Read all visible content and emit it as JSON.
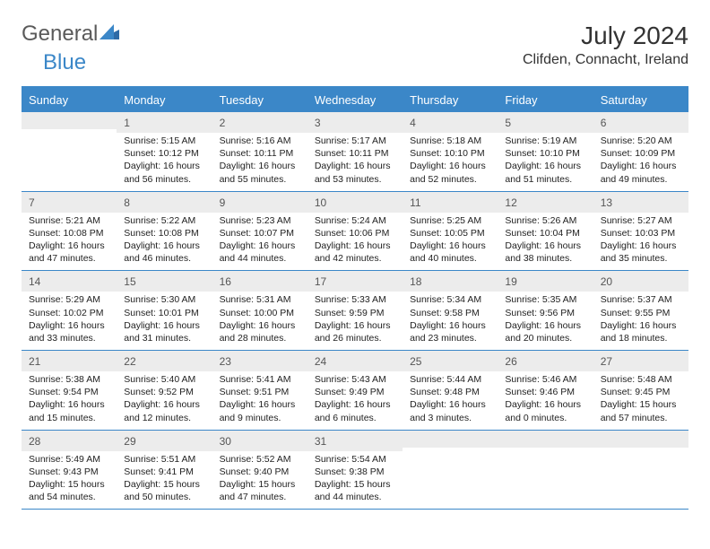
{
  "logo": {
    "text1": "General",
    "text2": "Blue",
    "accent": "#3b87c8"
  },
  "title": "July 2024",
  "location": "Clifden, Connacht, Ireland",
  "colors": {
    "header_bg": "#3b87c8",
    "header_fg": "#ffffff",
    "daynum_bg": "#ececec",
    "rule": "#3b87c8"
  },
  "dow": [
    "Sunday",
    "Monday",
    "Tuesday",
    "Wednesday",
    "Thursday",
    "Friday",
    "Saturday"
  ],
  "weeks": [
    [
      {
        "blank": true
      },
      {
        "n": "1",
        "sr": "5:15 AM",
        "ss": "10:12 PM",
        "dl": "16 hours and 56 minutes."
      },
      {
        "n": "2",
        "sr": "5:16 AM",
        "ss": "10:11 PM",
        "dl": "16 hours and 55 minutes."
      },
      {
        "n": "3",
        "sr": "5:17 AM",
        "ss": "10:11 PM",
        "dl": "16 hours and 53 minutes."
      },
      {
        "n": "4",
        "sr": "5:18 AM",
        "ss": "10:10 PM",
        "dl": "16 hours and 52 minutes."
      },
      {
        "n": "5",
        "sr": "5:19 AM",
        "ss": "10:10 PM",
        "dl": "16 hours and 51 minutes."
      },
      {
        "n": "6",
        "sr": "5:20 AM",
        "ss": "10:09 PM",
        "dl": "16 hours and 49 minutes."
      }
    ],
    [
      {
        "n": "7",
        "sr": "5:21 AM",
        "ss": "10:08 PM",
        "dl": "16 hours and 47 minutes."
      },
      {
        "n": "8",
        "sr": "5:22 AM",
        "ss": "10:08 PM",
        "dl": "16 hours and 46 minutes."
      },
      {
        "n": "9",
        "sr": "5:23 AM",
        "ss": "10:07 PM",
        "dl": "16 hours and 44 minutes."
      },
      {
        "n": "10",
        "sr": "5:24 AM",
        "ss": "10:06 PM",
        "dl": "16 hours and 42 minutes."
      },
      {
        "n": "11",
        "sr": "5:25 AM",
        "ss": "10:05 PM",
        "dl": "16 hours and 40 minutes."
      },
      {
        "n": "12",
        "sr": "5:26 AM",
        "ss": "10:04 PM",
        "dl": "16 hours and 38 minutes."
      },
      {
        "n": "13",
        "sr": "5:27 AM",
        "ss": "10:03 PM",
        "dl": "16 hours and 35 minutes."
      }
    ],
    [
      {
        "n": "14",
        "sr": "5:29 AM",
        "ss": "10:02 PM",
        "dl": "16 hours and 33 minutes."
      },
      {
        "n": "15",
        "sr": "5:30 AM",
        "ss": "10:01 PM",
        "dl": "16 hours and 31 minutes."
      },
      {
        "n": "16",
        "sr": "5:31 AM",
        "ss": "10:00 PM",
        "dl": "16 hours and 28 minutes."
      },
      {
        "n": "17",
        "sr": "5:33 AM",
        "ss": "9:59 PM",
        "dl": "16 hours and 26 minutes."
      },
      {
        "n": "18",
        "sr": "5:34 AM",
        "ss": "9:58 PM",
        "dl": "16 hours and 23 minutes."
      },
      {
        "n": "19",
        "sr": "5:35 AM",
        "ss": "9:56 PM",
        "dl": "16 hours and 20 minutes."
      },
      {
        "n": "20",
        "sr": "5:37 AM",
        "ss": "9:55 PM",
        "dl": "16 hours and 18 minutes."
      }
    ],
    [
      {
        "n": "21",
        "sr": "5:38 AM",
        "ss": "9:54 PM",
        "dl": "16 hours and 15 minutes."
      },
      {
        "n": "22",
        "sr": "5:40 AM",
        "ss": "9:52 PM",
        "dl": "16 hours and 12 minutes."
      },
      {
        "n": "23",
        "sr": "5:41 AM",
        "ss": "9:51 PM",
        "dl": "16 hours and 9 minutes."
      },
      {
        "n": "24",
        "sr": "5:43 AM",
        "ss": "9:49 PM",
        "dl": "16 hours and 6 minutes."
      },
      {
        "n": "25",
        "sr": "5:44 AM",
        "ss": "9:48 PM",
        "dl": "16 hours and 3 minutes."
      },
      {
        "n": "26",
        "sr": "5:46 AM",
        "ss": "9:46 PM",
        "dl": "16 hours and 0 minutes."
      },
      {
        "n": "27",
        "sr": "5:48 AM",
        "ss": "9:45 PM",
        "dl": "15 hours and 57 minutes."
      }
    ],
    [
      {
        "n": "28",
        "sr": "5:49 AM",
        "ss": "9:43 PM",
        "dl": "15 hours and 54 minutes."
      },
      {
        "n": "29",
        "sr": "5:51 AM",
        "ss": "9:41 PM",
        "dl": "15 hours and 50 minutes."
      },
      {
        "n": "30",
        "sr": "5:52 AM",
        "ss": "9:40 PM",
        "dl": "15 hours and 47 minutes."
      },
      {
        "n": "31",
        "sr": "5:54 AM",
        "ss": "9:38 PM",
        "dl": "15 hours and 44 minutes."
      },
      {
        "blank": true
      },
      {
        "blank": true
      },
      {
        "blank": true
      }
    ]
  ],
  "labels": {
    "sunrise": "Sunrise:",
    "sunset": "Sunset:",
    "daylight": "Daylight:"
  }
}
